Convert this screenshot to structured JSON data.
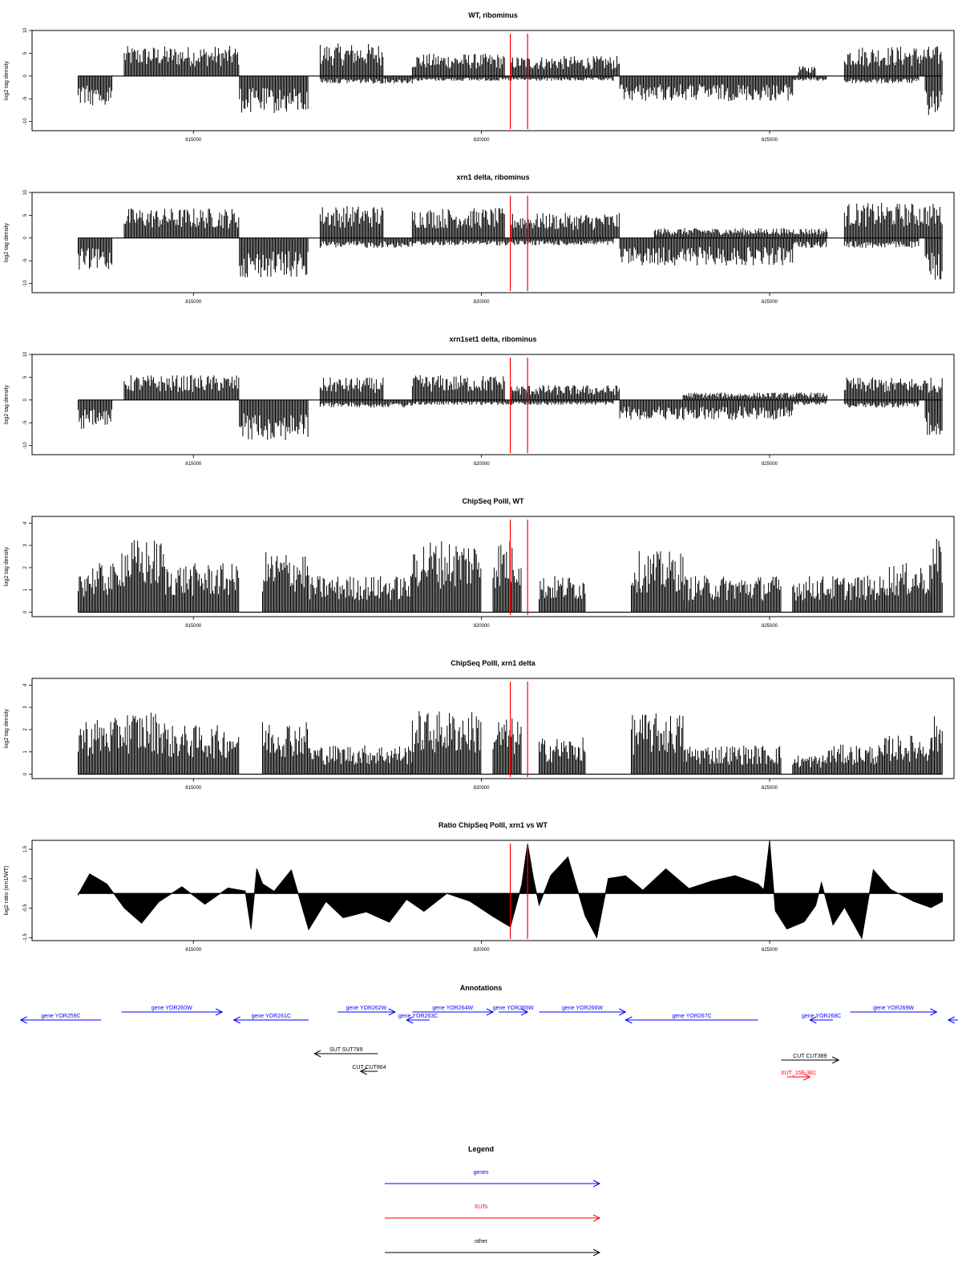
{
  "chart_data": [
    {
      "type": "bar",
      "title": "WT, ribominus",
      "ylabel": "log2 tag density",
      "ylim": [
        -12,
        10
      ],
      "yticks": [
        "10",
        "5",
        "0",
        "-5",
        "-10"
      ],
      "xlim": [
        812200,
        828200
      ],
      "xticks": [
        "815000",
        "820000",
        "825000"
      ],
      "marks": [
        820500,
        820800
      ],
      "grid": false,
      "bars_pos": [
        [
          813800,
          815800,
          6
        ],
        [
          817200,
          818300,
          6.5
        ],
        [
          818800,
          820400,
          4.5
        ],
        [
          820500,
          822400,
          4
        ],
        [
          825500,
          825800,
          2
        ],
        [
          826300,
          828000,
          6
        ]
      ],
      "bars_neg": [
        [
          813000,
          813600,
          -6
        ],
        [
          815800,
          817000,
          -7.5
        ],
        [
          817200,
          818800,
          -1.5
        ],
        [
          818800,
          822300,
          -1
        ],
        [
          822400,
          825400,
          -5
        ],
        [
          825400,
          826000,
          -1
        ],
        [
          826300,
          827600,
          -1.5
        ],
        [
          827700,
          828000,
          -8
        ]
      ]
    },
    {
      "type": "bar",
      "title": "xrn1 delta, ribominus",
      "ylabel": "log2 tag density",
      "ylim": [
        -12,
        10
      ],
      "yticks": [
        "10",
        "5",
        "0",
        "-5",
        "-10"
      ],
      "xlim": [
        812200,
        828200
      ],
      "xticks": [
        "815000",
        "820000",
        "825000"
      ],
      "marks": [
        820500,
        820800
      ],
      "grid": false,
      "bars_pos": [
        [
          813800,
          815800,
          6
        ],
        [
          817200,
          818300,
          6.5
        ],
        [
          818800,
          820400,
          6
        ],
        [
          820500,
          822400,
          5
        ],
        [
          823000,
          826000,
          2
        ],
        [
          826300,
          828000,
          7
        ]
      ],
      "bars_neg": [
        [
          813000,
          813600,
          -6.5
        ],
        [
          815800,
          817000,
          -8
        ],
        [
          817200,
          818800,
          -2
        ],
        [
          818800,
          822300,
          -1.5
        ],
        [
          822400,
          825400,
          -5.5
        ],
        [
          825400,
          826000,
          -2
        ],
        [
          826300,
          827600,
          -2
        ],
        [
          827700,
          828000,
          -8.5
        ]
      ]
    },
    {
      "type": "bar",
      "title": "xrn1set1 delta, ribominus",
      "ylabel": "log2 tag density",
      "ylim": [
        -12,
        10
      ],
      "yticks": [
        "10",
        "5",
        "0",
        "-5",
        "-10"
      ],
      "xlim": [
        812200,
        828200
      ],
      "xticks": [
        "815000",
        "820000",
        "825000"
      ],
      "marks": [
        820500,
        820800
      ],
      "grid": false,
      "bars_pos": [
        [
          813800,
          815800,
          5
        ],
        [
          817200,
          818300,
          4.5
        ],
        [
          818800,
          820400,
          5
        ],
        [
          820500,
          822400,
          3
        ],
        [
          823500,
          826000,
          1.5
        ],
        [
          826300,
          828000,
          4.5
        ]
      ],
      "bars_neg": [
        [
          813000,
          813600,
          -6
        ],
        [
          815800,
          817000,
          -8
        ],
        [
          817200,
          818800,
          -1.5
        ],
        [
          818800,
          822300,
          -1
        ],
        [
          822400,
          825400,
          -4
        ],
        [
          825400,
          826000,
          -1
        ],
        [
          826300,
          827600,
          -1.5
        ],
        [
          827700,
          828000,
          -7
        ]
      ]
    },
    {
      "type": "bar",
      "title": "ChipSeq PolII, WT",
      "ylabel": "log2 tag density",
      "ylim": [
        -0.2,
        4.3
      ],
      "yticks": [
        "4",
        "3",
        "2",
        "1",
        "0"
      ],
      "xlim": [
        812200,
        828200
      ],
      "xticks": [
        "815000",
        "820000",
        "825000"
      ],
      "marks": [
        820500,
        820800
      ],
      "grid": false,
      "bars_pos": [
        [
          813000,
          813700,
          2
        ],
        [
          813700,
          814500,
          3
        ],
        [
          814500,
          815800,
          2
        ],
        [
          816200,
          817000,
          2.5
        ],
        [
          817000,
          818800,
          1.5
        ],
        [
          818800,
          820000,
          3
        ],
        [
          820200,
          820700,
          3
        ],
        [
          821000,
          821800,
          1.5
        ],
        [
          822600,
          823500,
          2.5
        ],
        [
          823500,
          825200,
          1.5
        ],
        [
          825400,
          826000,
          1.5
        ],
        [
          826000,
          827000,
          1.5
        ],
        [
          827000,
          827800,
          2
        ],
        [
          827800,
          828000,
          3
        ]
      ]
    },
    {
      "type": "bar",
      "title": "ChipSeq PolII, xrn1 delta",
      "ylabel": "log2 tag density",
      "ylim": [
        -0.2,
        4.3
      ],
      "yticks": [
        "4",
        "3",
        "2",
        "1",
        "0"
      ],
      "xlim": [
        812200,
        828200
      ],
      "xticks": [
        "815000",
        "820000",
        "825000"
      ],
      "marks": [
        820500,
        820800
      ],
      "grid": false,
      "bars_pos": [
        [
          813000,
          813700,
          2.3
        ],
        [
          813700,
          814500,
          2.6
        ],
        [
          814500,
          815800,
          2
        ],
        [
          816200,
          817000,
          2.2
        ],
        [
          817000,
          818800,
          1.2
        ],
        [
          818800,
          820000,
          2.6
        ],
        [
          820200,
          820700,
          2.3
        ],
        [
          821000,
          821800,
          1.5
        ],
        [
          822600,
          823500,
          2.5
        ],
        [
          823500,
          825200,
          1.2
        ],
        [
          825400,
          826000,
          0.8
        ],
        [
          826000,
          827000,
          1.2
        ],
        [
          827000,
          827800,
          1.6
        ],
        [
          827800,
          828000,
          2.4
        ]
      ]
    },
    {
      "type": "area",
      "title": "Ratio ChipSeq PolII, xrn1 vs WT",
      "ylabel": "log2 ratio (xrn1/WT)",
      "ylim": [
        -1.6,
        1.8
      ],
      "yticks": [
        "1.5",
        "0.5",
        "-0.5",
        "-1.5"
      ],
      "xlim": [
        812200,
        828200
      ],
      "xticks": [
        "815000",
        "820000",
        "825000"
      ],
      "marks": [
        820500,
        820800
      ],
      "grid": false,
      "x": [
        813000,
        813200,
        813500,
        813800,
        814100,
        814400,
        814800,
        815200,
        815600,
        815900,
        816000,
        816100,
        816200,
        816400,
        816700,
        817000,
        817300,
        817600,
        818000,
        818400,
        818700,
        819000,
        819400,
        819800,
        820200,
        820500,
        820700,
        820800,
        820900,
        821000,
        821200,
        821500,
        821800,
        822000,
        822200,
        822500,
        822800,
        823200,
        823600,
        824000,
        824400,
        824800,
        824900,
        825000,
        825100,
        825300,
        825600,
        825800,
        825900,
        826100,
        826300,
        826600,
        826800,
        827100,
        827500,
        827800,
        828000
      ],
      "y": [
        0,
        0.7,
        0.3,
        -0.5,
        -1,
        -0.3,
        0.2,
        -0.4,
        0.2,
        0.1,
        -1.2,
        0.8,
        0.3,
        0.1,
        0.8,
        -1.2,
        -0.3,
        -0.8,
        -0.6,
        -1,
        -0.2,
        -0.6,
        0,
        -0.3,
        -0.8,
        -1.1,
        0.3,
        1.7,
        0.5,
        -0.4,
        0.6,
        1.2,
        -0.8,
        -1.5,
        0.5,
        0.6,
        0.1,
        0.8,
        0.2,
        0.4,
        0.6,
        0.3,
        0.1,
        1.8,
        -0.6,
        -1.2,
        -1,
        -0.4,
        0.4,
        -1.1,
        -0.5,
        -1.5,
        0.8,
        0.1,
        -0.3,
        -0.5,
        -0.3
      ]
    }
  ],
  "annotations": {
    "title": "Annotations",
    "items": [
      {
        "label": "gene YOR259C",
        "kind": "gene",
        "row": 1,
        "start": 812000,
        "end": 813400,
        "strand": "-"
      },
      {
        "label": "gene YOR260W",
        "kind": "gene",
        "row": 0,
        "start": 813750,
        "end": 815500,
        "strand": "+"
      },
      {
        "label": "gene YOR261C",
        "kind": "gene",
        "row": 1,
        "start": 815700,
        "end": 817000,
        "strand": "-"
      },
      {
        "label": "gene YOR262W",
        "kind": "gene",
        "row": 0,
        "start": 817500,
        "end": 818500,
        "strand": "+"
      },
      {
        "label": "gene YOR263C",
        "kind": "gene",
        "row": 1,
        "start": 818700,
        "end": 819100,
        "strand": "-"
      },
      {
        "label": "gene YOR264W",
        "kind": "gene",
        "row": 0,
        "start": 818800,
        "end": 820200,
        "strand": "+"
      },
      {
        "label": "gene YOR265W",
        "kind": "gene",
        "row": 0,
        "start": 820300,
        "end": 820800,
        "strand": "+"
      },
      {
        "label": "gene YOR266W",
        "kind": "gene",
        "row": 0,
        "start": 821000,
        "end": 822500,
        "strand": "+"
      },
      {
        "label": "gene YOR267C",
        "kind": "gene",
        "row": 1,
        "start": 822500,
        "end": 824800,
        "strand": "-"
      },
      {
        "label": "gene YOR268C",
        "kind": "gene",
        "row": 1,
        "start": 825700,
        "end": 826100,
        "strand": "-"
      },
      {
        "label": "gene YOR269W",
        "kind": "gene",
        "row": 0,
        "start": 826400,
        "end": 827900,
        "strand": "+"
      },
      {
        "label": "",
        "kind": "gene",
        "row": 1,
        "start": 828100,
        "end": 828800,
        "strand": "-"
      },
      {
        "label": "SUT SUT789",
        "kind": "other",
        "row": 2,
        "start": 817100,
        "end": 818200,
        "strand": "-"
      },
      {
        "label": "CUT CUT864",
        "kind": "other",
        "row": 3,
        "start": 817900,
        "end": 818200,
        "strand": "-"
      },
      {
        "label": "CUT CUT389",
        "kind": "other",
        "row": 4,
        "start": 825200,
        "end": 826200,
        "strand": "+"
      },
      {
        "label": "XUT_15F-381",
        "kind": "xut",
        "row": 5,
        "start": 825300,
        "end": 825700,
        "strand": "+"
      }
    ]
  },
  "legend": {
    "title": "Legend",
    "items": [
      {
        "label": "genes",
        "color": "#0000ff"
      },
      {
        "label": "XUTs",
        "color": "#ff0000"
      },
      {
        "label": "other",
        "color": "#000000"
      }
    ]
  },
  "colors": {
    "data": "#000000",
    "marker": "#ff0000",
    "gene": "#0000ff",
    "xut": "#ff0000",
    "other": "#000000"
  }
}
